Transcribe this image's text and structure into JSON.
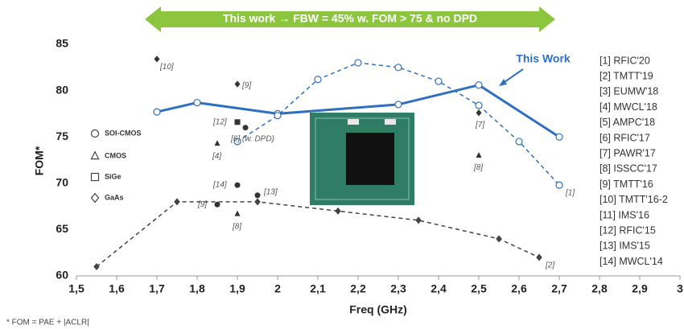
{
  "chart_data": {
    "type": "line",
    "banner": "This work → FBW = 45% w. FOM > 75 & no DPD",
    "annotation": "This Work",
    "xlabel": "Freq (GHz)",
    "ylabel": "FOM*",
    "footnote": "* FOM = PAE + |ACLR|",
    "xlim": [
      1.5,
      3
    ],
    "ylim": [
      60,
      85
    ],
    "xticks": [
      {
        "value": 1.5,
        "label": "1,5"
      },
      {
        "value": 1.6,
        "label": "1,6"
      },
      {
        "value": 1.7,
        "label": "1,7"
      },
      {
        "value": 1.8,
        "label": "1,8"
      },
      {
        "value": 1.9,
        "label": "1,9"
      },
      2,
      {
        "value": 2.1,
        "label": "2,1"
      },
      {
        "value": 2.2,
        "label": "2,2"
      },
      {
        "value": 2.3,
        "label": "2,3"
      },
      {
        "value": 2.4,
        "label": "2,4"
      },
      {
        "value": 2.5,
        "label": "2,5"
      },
      {
        "value": 2.6,
        "label": "2,6"
      },
      {
        "value": 2.7,
        "label": "2,7"
      },
      {
        "value": 2.8,
        "label": "2,8"
      },
      {
        "value": 2.9,
        "label": "2,9"
      },
      3
    ],
    "yticks": [
      60,
      65,
      70,
      75,
      80,
      85
    ],
    "series": [
      {
        "color": "#2f6fbf",
        "dash": false,
        "marker": "circle",
        "x": [
          1.7,
          1.8,
          2.0,
          2.3,
          2.5,
          2.7
        ],
        "values": [
          77.7,
          78.7,
          77.5,
          78.5,
          80.6,
          75.0
        ]
      },
      {
        "color": "#2f6fbf",
        "dash": true,
        "marker": "circle",
        "label": "[1]",
        "x": [
          1.9,
          2.0,
          2.1,
          2.2,
          2.3,
          2.4,
          2.5,
          2.6,
          2.7
        ],
        "values": [
          74.5,
          77.3,
          81.2,
          83.0,
          82.5,
          81.0,
          78.4,
          74.5,
          69.8
        ]
      },
      {
        "color": "#444444",
        "dash": true,
        "marker": "diamond",
        "label": "[2]",
        "x": [
          1.55,
          1.75,
          1.95,
          2.15,
          2.35,
          2.55,
          2.65
        ],
        "values": [
          61.0,
          68.0,
          68.0,
          67.0,
          66.0,
          64.0,
          62.0
        ]
      }
    ],
    "points": [
      {
        "label": "[10]",
        "shape": "diamond",
        "x": 1.7,
        "y": 83.4
      },
      {
        "label": "[9]",
        "shape": "diamond",
        "x": 1.9,
        "y": 80.7
      },
      {
        "label": "[12]",
        "shape": "square",
        "x": 1.9,
        "y": 76.6
      },
      {
        "label": "[6] (w. DPD)",
        "shape": "circle",
        "x": 1.92,
        "y": 76.0
      },
      {
        "label": "[4]",
        "shape": "triangle",
        "x": 1.85,
        "y": 74.3
      },
      {
        "label": "[7]",
        "shape": "diamond",
        "x": 2.5,
        "y": 77.6
      },
      {
        "label": "[8]",
        "shape": "triangle",
        "x": 2.5,
        "y": 73.0
      },
      {
        "label": "[14]",
        "shape": "circle",
        "x": 1.9,
        "y": 69.8
      },
      {
        "label": "[13]",
        "shape": "circle",
        "x": 1.95,
        "y": 68.7
      },
      {
        "label": "[9]",
        "shape": "circle",
        "x": 1.85,
        "y": 67.7
      },
      {
        "label": "[8]",
        "shape": "triangle",
        "x": 1.9,
        "y": 66.7
      }
    ],
    "legend": [
      {
        "name": "SOI-CMOS",
        "shape": "circle"
      },
      {
        "name": "CMOS",
        "shape": "triangle"
      },
      {
        "name": "SiGe",
        "shape": "square"
      },
      {
        "name": "GaAs",
        "shape": "diamond"
      }
    ],
    "references": [
      "[1] RFIC'20",
      "[2] TMTT'19",
      "[3] EUMW'18",
      "[4] MWCL'18",
      "[5] AMPC'18",
      "[6] RFIC'17",
      "[7] PAWR'17",
      "[8] ISSCC'17",
      "[9] TMTT'16",
      "[10] TMTT'16-2",
      "[11] IMS'16",
      "[12] RFIC'15",
      "[13] IMS'15",
      "[14] MWCL'14"
    ]
  }
}
